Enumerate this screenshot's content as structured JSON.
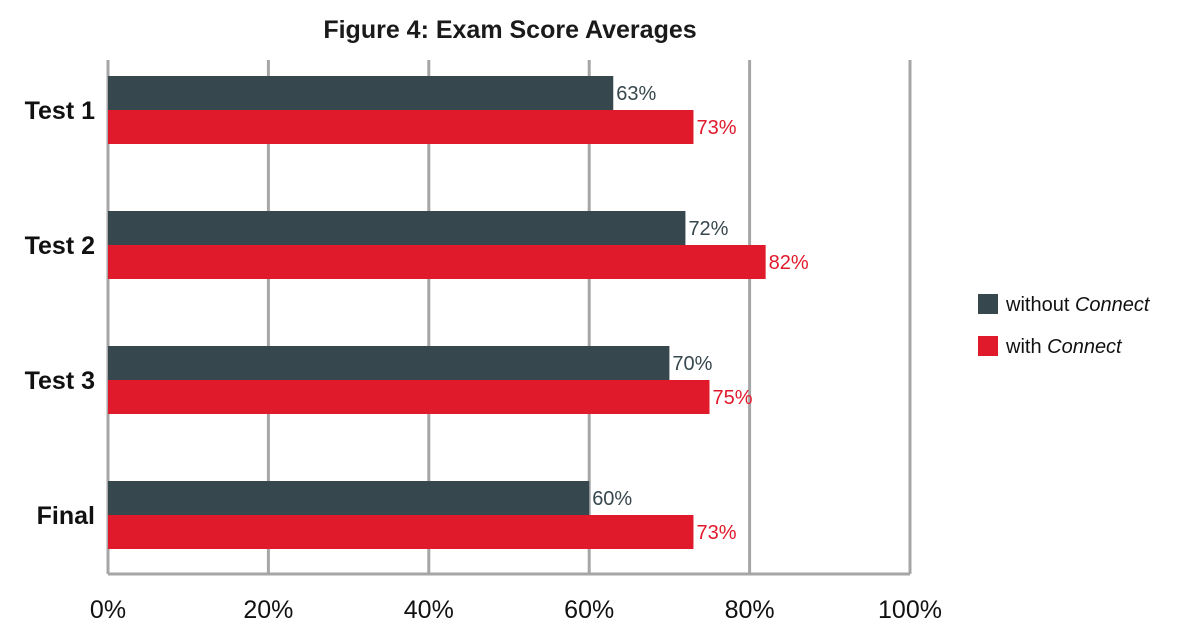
{
  "chart_data": {
    "type": "bar",
    "orientation": "horizontal",
    "title": "Figure 4: Exam Score Averages",
    "categories": [
      "Test 1",
      "Test 2",
      "Test 3",
      "Final"
    ],
    "series": [
      {
        "name": "without Connect",
        "name_prefix": "without ",
        "name_em": "Connect",
        "values": [
          63,
          72,
          70,
          60
        ],
        "labels": [
          "63%",
          "72%",
          "70%",
          "60%"
        ],
        "color": "#36474d"
      },
      {
        "name": "with Connect",
        "name_prefix": "with ",
        "name_em": "Connect",
        "values": [
          73,
          82,
          75,
          73
        ],
        "labels": [
          "73%",
          "82%",
          "75%",
          "73%"
        ],
        "color": "#e0192b"
      }
    ],
    "xlim": [
      0,
      100
    ],
    "xticks": [
      0,
      20,
      40,
      60,
      80,
      100
    ],
    "xtick_labels": [
      "0%",
      "20%",
      "40%",
      "60%",
      "80%",
      "100%"
    ],
    "grid": "vertical",
    "gridline_color": "#a6a6a6",
    "legend_position": "right"
  }
}
